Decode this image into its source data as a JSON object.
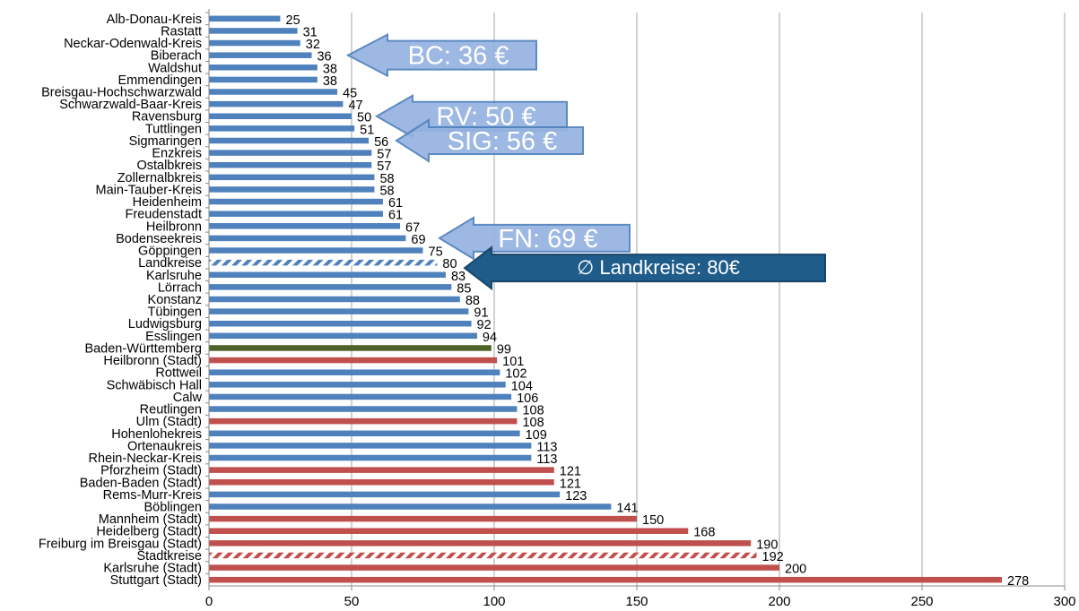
{
  "chart_data": {
    "type": "bar",
    "orientation": "horizontal",
    "xlim": [
      0,
      300
    ],
    "x_ticks": [
      "0",
      "50",
      "100",
      "150",
      "200",
      "250",
      "300"
    ],
    "grid": true,
    "colors": {
      "landkreis": "#4f81bd",
      "stadtkreis": "#c0504d",
      "state": "#4f6228",
      "landkreise_avg_hatch": "#4f81bd",
      "stadtkreise_avg_hatch": "#c0504d"
    },
    "bars": [
      {
        "label": "Alb-Donau-Kreis",
        "value": 25,
        "value_label": "25",
        "kind": "landkreis"
      },
      {
        "label": "Rastatt",
        "value": 31,
        "value_label": "31",
        "kind": "landkreis"
      },
      {
        "label": "Neckar-Odenwald-Kreis",
        "value": 32,
        "value_label": "32",
        "kind": "landkreis"
      },
      {
        "label": "Biberach",
        "value": 36,
        "value_label": "36",
        "kind": "landkreis"
      },
      {
        "label": "Waldshut",
        "value": 38,
        "value_label": "38",
        "kind": "landkreis"
      },
      {
        "label": "Emmendingen",
        "value": 38,
        "value_label": "38",
        "kind": "landkreis"
      },
      {
        "label": "Breisgau-Hochschwarzwald",
        "value": 45,
        "value_label": "45",
        "kind": "landkreis"
      },
      {
        "label": "Schwarzwald-Baar-Kreis",
        "value": 47,
        "value_label": "47",
        "kind": "landkreis"
      },
      {
        "label": "Ravensburg",
        "value": 50,
        "value_label": "50",
        "kind": "landkreis"
      },
      {
        "label": "Tuttlingen",
        "value": 51,
        "value_label": "51",
        "kind": "landkreis"
      },
      {
        "label": "Sigmaringen",
        "value": 56,
        "value_label": "56",
        "kind": "landkreis"
      },
      {
        "label": "Enzkreis",
        "value": 57,
        "value_label": "57",
        "kind": "landkreis"
      },
      {
        "label": "Ostalbkreis",
        "value": 57,
        "value_label": "57",
        "kind": "landkreis"
      },
      {
        "label": "Zollernalbkreis",
        "value": 58,
        "value_label": "58",
        "kind": "landkreis"
      },
      {
        "label": "Main-Tauber-Kreis",
        "value": 58,
        "value_label": "58",
        "kind": "landkreis"
      },
      {
        "label": "Heidenheim",
        "value": 61,
        "value_label": "61",
        "kind": "landkreis"
      },
      {
        "label": "Freudenstadt",
        "value": 61,
        "value_label": "61",
        "kind": "landkreis"
      },
      {
        "label": "Heilbronn",
        "value": 67,
        "value_label": "67",
        "kind": "landkreis"
      },
      {
        "label": "Bodenseekreis",
        "value": 69,
        "value_label": "69",
        "kind": "landkreis"
      },
      {
        "label": "Göppingen",
        "value": 75,
        "value_label": "75",
        "kind": "landkreis"
      },
      {
        "label": "Landkreise",
        "value": 80,
        "value_label": "80",
        "kind": "landkreise_avg"
      },
      {
        "label": "Karlsruhe",
        "value": 83,
        "value_label": "83",
        "kind": "landkreis"
      },
      {
        "label": "Lörrach",
        "value": 85,
        "value_label": "85",
        "kind": "landkreis"
      },
      {
        "label": "Konstanz",
        "value": 88,
        "value_label": "88",
        "kind": "landkreis"
      },
      {
        "label": "Tübingen",
        "value": 91,
        "value_label": "91",
        "kind": "landkreis"
      },
      {
        "label": "Ludwigsburg",
        "value": 92,
        "value_label": "92",
        "kind": "landkreis"
      },
      {
        "label": "Esslingen",
        "value": 94,
        "value_label": "94",
        "kind": "landkreis"
      },
      {
        "label": "Baden-Württemberg",
        "value": 99,
        "value_label": "99",
        "kind": "state"
      },
      {
        "label": "Heilbronn (Stadt)",
        "value": 101,
        "value_label": "101",
        "kind": "stadtkreis"
      },
      {
        "label": "Rottweil",
        "value": 102,
        "value_label": "102",
        "kind": "landkreis"
      },
      {
        "label": "Schwäbisch Hall",
        "value": 104,
        "value_label": "104",
        "kind": "landkreis"
      },
      {
        "label": "Calw",
        "value": 106,
        "value_label": "106",
        "kind": "landkreis"
      },
      {
        "label": "Reutlingen",
        "value": 108,
        "value_label": "108",
        "kind": "landkreis"
      },
      {
        "label": "Ulm (Stadt)",
        "value": 108,
        "value_label": "108",
        "kind": "stadtkreis"
      },
      {
        "label": "Hohenlohekreis",
        "value": 109,
        "value_label": "109",
        "kind": "landkreis"
      },
      {
        "label": "Ortenaukreis",
        "value": 113,
        "value_label": "113",
        "kind": "landkreis"
      },
      {
        "label": "Rhein-Neckar-Kreis",
        "value": 113,
        "value_label": "113",
        "kind": "landkreis"
      },
      {
        "label": "Pforzheim (Stadt)",
        "value": 121,
        "value_label": "121",
        "kind": "stadtkreis"
      },
      {
        "label": "Baden-Baden (Stadt)",
        "value": 121,
        "value_label": "121",
        "kind": "stadtkreis"
      },
      {
        "label": "Rems-Murr-Kreis",
        "value": 123,
        "value_label": "123",
        "kind": "landkreis"
      },
      {
        "label": "Böblingen",
        "value": 141,
        "value_label": "141",
        "kind": "landkreis"
      },
      {
        "label": "Mannheim (Stadt)",
        "value": 150,
        "value_label": "150",
        "kind": "stadtkreis"
      },
      {
        "label": "Heidelberg (Stadt)",
        "value": 168,
        "value_label": "168",
        "kind": "stadtkreis"
      },
      {
        "label": "Freiburg im Breisgau (Stadt)",
        "value": 190,
        "value_label": "190",
        "kind": "stadtkreis"
      },
      {
        "label": "Stadtkreise",
        "value": 192,
        "value_label": "192",
        "kind": "stadtkreise_avg"
      },
      {
        "label": "Karlsruhe (Stadt)",
        "value": 200,
        "value_label": "200",
        "kind": "stadtkreis"
      },
      {
        "label": "Stuttgart (Stadt)",
        "value": 278,
        "value_label": "278",
        "kind": "stadtkreis"
      }
    ],
    "annotations": [
      {
        "text": "BC: 36 €",
        "points_to": "Biberach",
        "style": "light"
      },
      {
        "text": "RV: 50 €",
        "points_to": "Ravensburg",
        "style": "light"
      },
      {
        "text": "SIG: 56 €",
        "points_to": "Sigmaringen",
        "style": "light"
      },
      {
        "text": "FN: 69 €",
        "points_to": "Bodenseekreis",
        "style": "light"
      },
      {
        "text": "∅ Landkreise: 80€",
        "points_to": "Landkreise",
        "style": "dark"
      }
    ]
  }
}
